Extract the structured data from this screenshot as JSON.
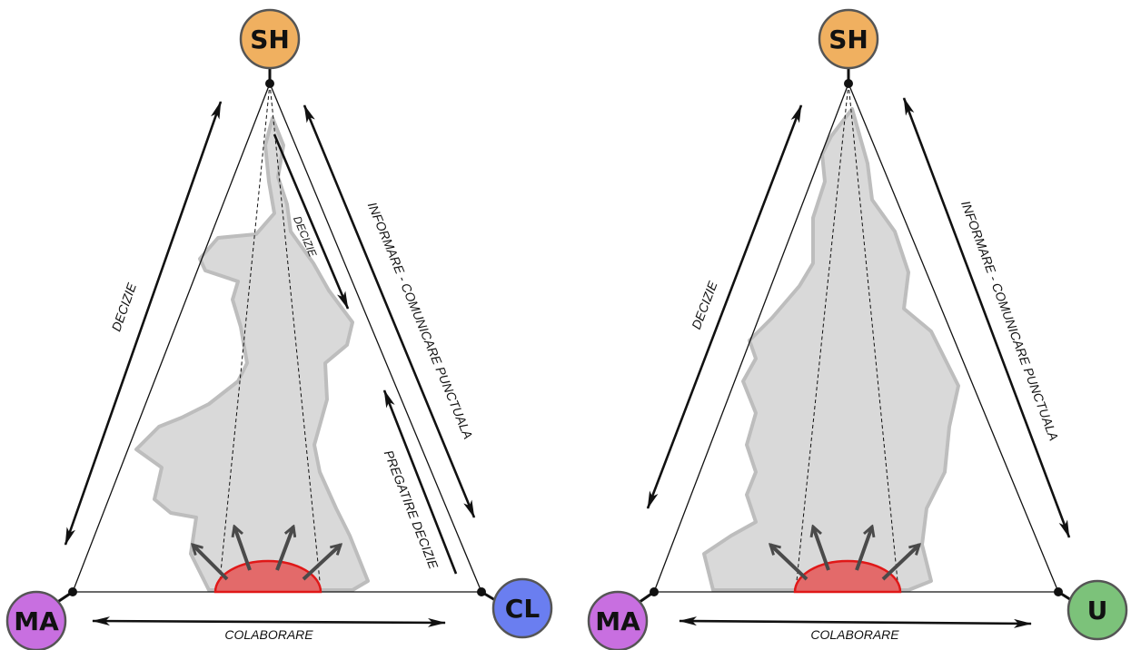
{
  "diagrams": [
    {
      "nodes": {
        "top": {
          "label": "SH",
          "color": "#f0b060"
        },
        "left": {
          "label": "MA",
          "color": "#c86fe0"
        },
        "right": {
          "label": "CL",
          "color": "#6a7ef0"
        }
      },
      "labels": {
        "left_edge": "DECIZIE",
        "right_edge": "INFORMARE - COMUNICARE PUNCTUALA",
        "right_inner": "PREGATIRE DECIZIE",
        "center_inner": "DECIZIE",
        "bottom_edge": "COLABORARE"
      }
    },
    {
      "nodes": {
        "top": {
          "label": "SH",
          "color": "#f0b060"
        },
        "left": {
          "label": "MA",
          "color": "#c86fe0"
        },
        "right": {
          "label": "U",
          "color": "#7cc27a"
        }
      },
      "labels": {
        "left_edge": "DECIZIE",
        "right_edge": "INFORMARE - COMUNICARE PUNCTUALA",
        "bottom_edge": "COLABORARE"
      }
    }
  ]
}
